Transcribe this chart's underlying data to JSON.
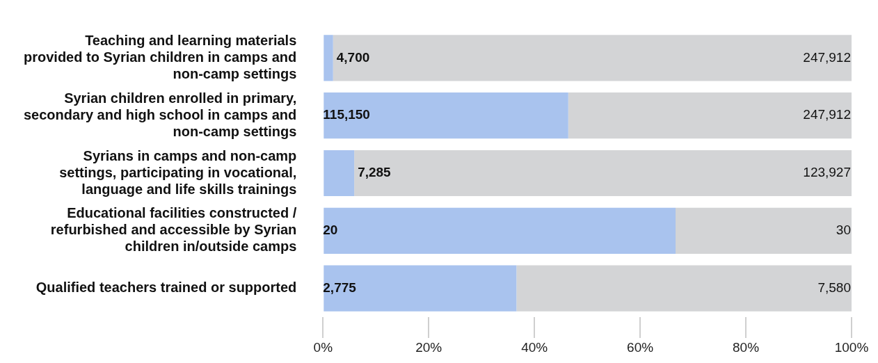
{
  "chart_data": {
    "type": "bar",
    "orientation": "horizontal",
    "stacked": true,
    "categories": [
      "Teaching and learning materials provided to Syrian children in camps and non-camp settings",
      "Syrian children enrolled in primary, secondary and high school in camps and non-camp settings",
      "Syrians in camps and non-camp settings, participating in vocational, language and life skills trainings",
      "Educational facilities constructed / refurbished and accessible by Syrian children in/outside camps",
      "Qualified teachers trained or supported"
    ],
    "series": [
      {
        "color": "#a9c3ee",
        "values": [
          1.9,
          46.4,
          5.9,
          66.7,
          36.6
        ]
      },
      {
        "color": "#d3d4d6",
        "values": [
          98.1,
          53.6,
          94.1,
          33.3,
          63.4
        ]
      }
    ],
    "annotations": [
      {
        "text": "4,700",
        "x": 1.9,
        "y": "Teaching and learning materials provided to Syrian children in camps and non-camp settings"
      },
      {
        "text": "247,912",
        "x": 100,
        "y": "Teaching and learning materials provided to Syrian children in camps and non-camp settings"
      },
      {
        "text": "115,150",
        "x": 0,
        "y": "Syrian children enrolled in primary, secondary and high school in camps and non-camp settings"
      },
      {
        "text": "247,912",
        "x": 100,
        "y": "Syrian children enrolled in primary, secondary and high school in camps and non-camp settings"
      },
      {
        "text": "7,285",
        "x": 5.9,
        "y": "Syrians in camps and non-camp settings, participating in vocational, language and life skills trainings"
      },
      {
        "text": "123,927",
        "x": 100,
        "y": "Syrians in camps and non-camp settings, participating in vocational, language and life skills trainings"
      },
      {
        "text": "20",
        "x": 0,
        "y": "Educational facilities constructed / refurbished and accessible by Syrian children in/outside camps"
      },
      {
        "text": "30",
        "x": 100,
        "y": "Educational facilities constructed / refurbished and accessible by Syrian children in/outside camps"
      },
      {
        "text": "2,775",
        "x": 0,
        "y": "Qualified teachers trained or supported"
      },
      {
        "text": "7,580",
        "x": 100,
        "y": "Qualified teachers trained or supported"
      }
    ],
    "xlim": [
      0,
      100
    ],
    "xticks": [
      {
        "value": 0,
        "label": "0%"
      },
      {
        "value": 20,
        "label": "20%"
      },
      {
        "value": 40,
        "label": "40%"
      },
      {
        "value": 60,
        "label": "60%"
      },
      {
        "value": 80,
        "label": "80%"
      },
      {
        "value": 100,
        "label": "100%"
      }
    ],
    "grid": false,
    "legend": false
  }
}
